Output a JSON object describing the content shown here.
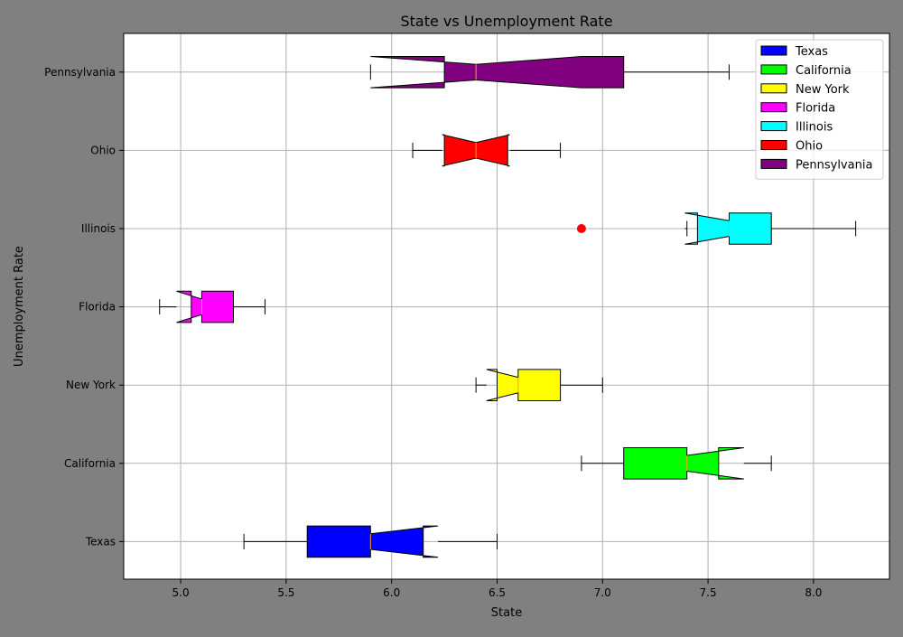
{
  "chart_data": {
    "type": "boxplot",
    "orientation": "horizontal",
    "notched": true,
    "title": "State vs Unemployment Rate",
    "xlabel": "State",
    "ylabel": "Unemployment Rate",
    "xlim": [
      4.73,
      8.36
    ],
    "x_ticks": [
      "5.0",
      "5.5",
      "6.0",
      "6.5",
      "7.0",
      "7.5",
      "8.0"
    ],
    "grid": true,
    "legend_position": "top-right",
    "background_color": "#808080",
    "plot_background": "#ffffff",
    "median_color": "#ff9f1a",
    "outlier_color": "#ff0000",
    "series": [
      {
        "name": "Texas",
        "color": "#0000ff",
        "whisker_low": 5.3,
        "q1": 5.6,
        "median": 5.9,
        "q3": 6.15,
        "whisker_high": 6.5,
        "notch_low": 5.9,
        "notch_high": 6.22,
        "outliers": []
      },
      {
        "name": "California",
        "color": "#00ff00",
        "whisker_low": 6.9,
        "q1": 7.1,
        "median": 7.4,
        "q3": 7.55,
        "whisker_high": 7.8,
        "notch_low": 7.4,
        "notch_high": 7.67,
        "outliers": []
      },
      {
        "name": "New York",
        "color": "#ffff00",
        "whisker_low": 6.4,
        "q1": 6.5,
        "median": 6.6,
        "q3": 6.8,
        "whisker_high": 7.0,
        "notch_low": 6.45,
        "notch_high": 6.6,
        "outliers": []
      },
      {
        "name": "Florida",
        "color": "#ff00ff",
        "whisker_low": 4.9,
        "q1": 5.05,
        "median": 5.1,
        "q3": 5.25,
        "whisker_high": 5.4,
        "notch_low": 4.98,
        "notch_high": 5.1,
        "outliers": []
      },
      {
        "name": "Illinois",
        "color": "#00ffff",
        "whisker_low": 7.4,
        "q1": 7.45,
        "median": 7.6,
        "q3": 7.8,
        "whisker_high": 8.2,
        "notch_low": 7.39,
        "notch_high": 7.6,
        "outliers": [
          6.9
        ]
      },
      {
        "name": "Ohio",
        "color": "#ff0000",
        "whisker_low": 6.1,
        "q1": 6.25,
        "median": 6.4,
        "q3": 6.55,
        "whisker_high": 6.8,
        "notch_low": 6.24,
        "notch_high": 6.56,
        "outliers": []
      },
      {
        "name": "Pennsylvania",
        "color": "#800080",
        "whisker_low": 5.9,
        "q1": 6.25,
        "median": 6.4,
        "q3": 7.1,
        "whisker_high": 7.6,
        "notch_low": 5.9,
        "notch_high": 6.9,
        "outliers": []
      }
    ]
  }
}
